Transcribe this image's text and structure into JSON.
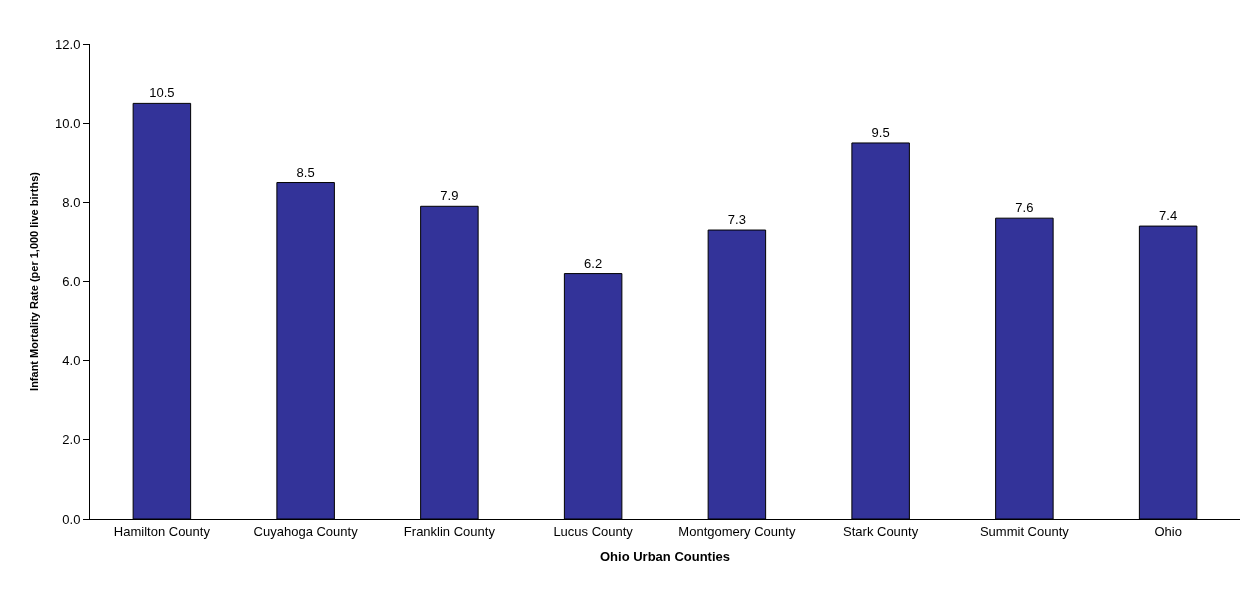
{
  "chart_data": {
    "type": "bar",
    "xlabel": "Ohio Urban Counties",
    "ylabel": "Infant Mortality Rate (per 1,000 live births)",
    "categories": [
      "Hamilton County",
      "Cuyahoga County",
      "Franklin County",
      "Lucus County",
      "Montgomery County",
      "Stark County",
      "Summit County",
      "Ohio"
    ],
    "values": [
      10.5,
      8.5,
      7.9,
      6.2,
      7.3,
      9.5,
      7.6,
      7.4
    ],
    "color": "#333399",
    "data_labels": true,
    "ylim": [
      0,
      12
    ],
    "yticks": [
      {
        "value": 0,
        "label": "0.0"
      },
      {
        "value": 2,
        "label": "2.0"
      },
      {
        "value": 4,
        "label": "4.0"
      },
      {
        "value": 6,
        "label": "6.0"
      },
      {
        "value": 8,
        "label": "8.0"
      },
      {
        "value": 10,
        "label": "10.0"
      },
      {
        "value": 12,
        "label": "12.0"
      }
    ]
  }
}
